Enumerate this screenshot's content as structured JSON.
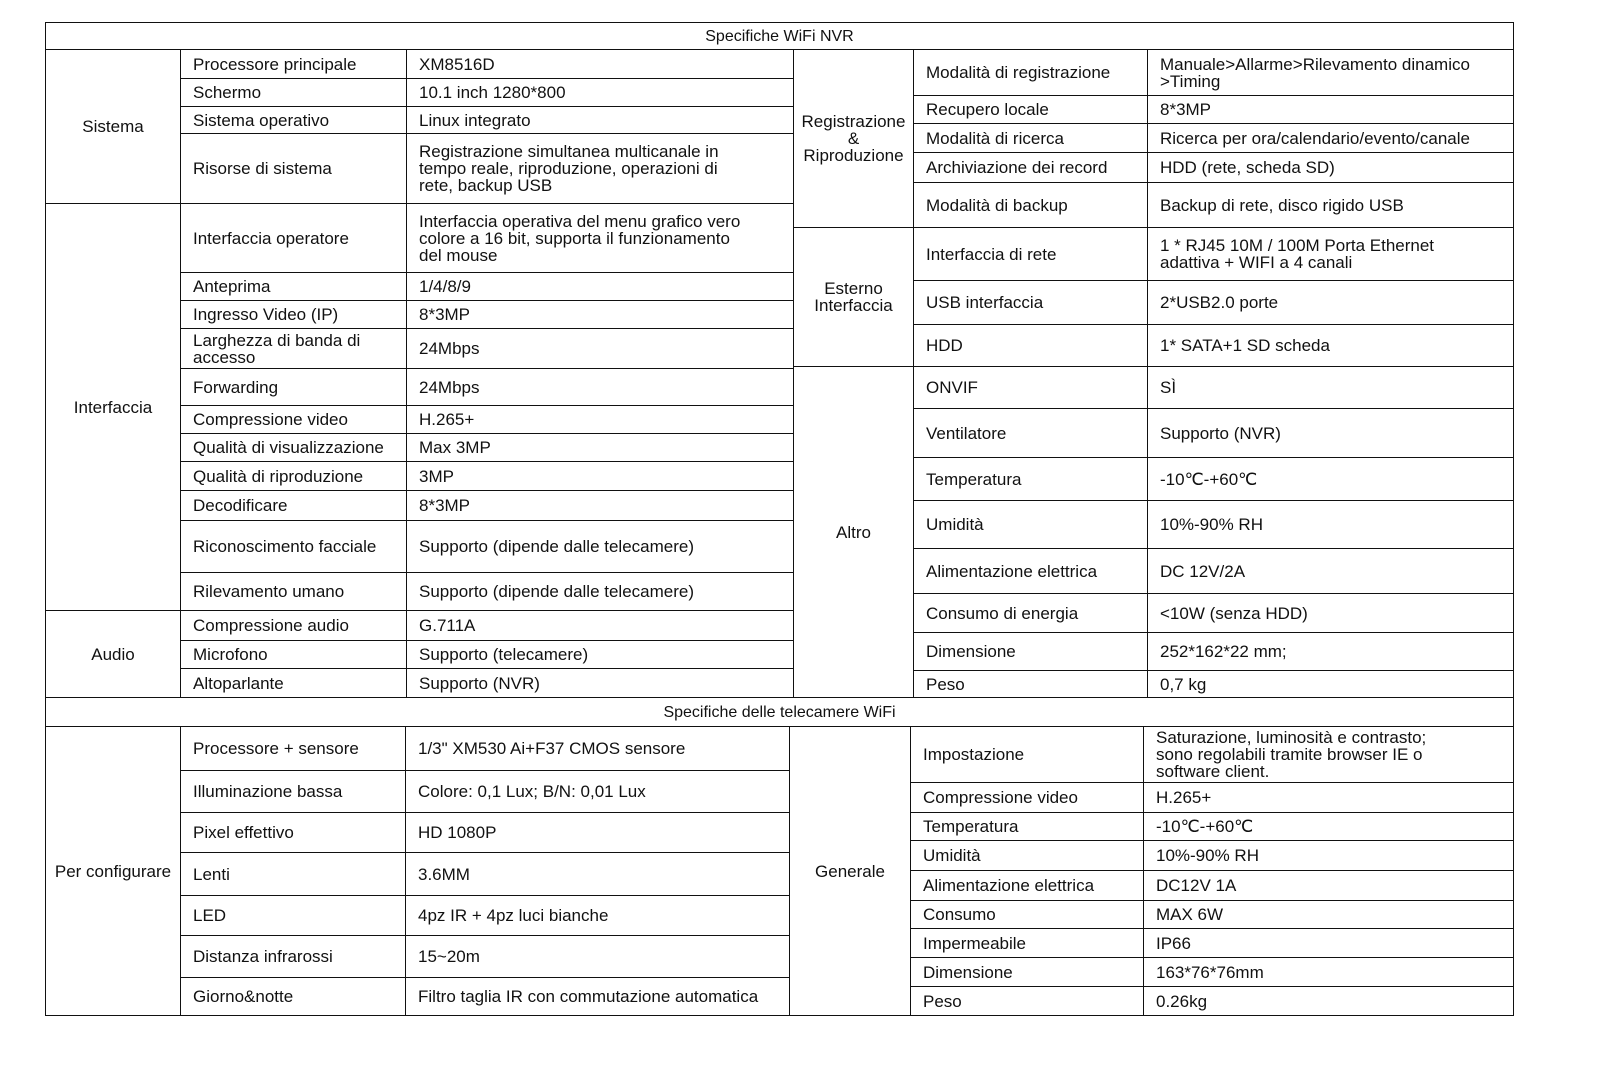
{
  "nvr": {
    "title": "Specifiche WiFi NVR",
    "left": [
      {
        "group": "Sistema",
        "rows": [
          {
            "label": "Processore principale",
            "value": "XM8516D"
          },
          {
            "label": "Schermo",
            "value": "10.1 inch  1280*800"
          },
          {
            "label": "Sistema operativo",
            "value": "Linux integrato"
          },
          {
            "label": "Risorse di sistema",
            "value": "Registrazione simultanea multicanale in\ntempo reale, riproduzione, operazioni di\nrete, backup USB"
          }
        ]
      },
      {
        "group": "Interfaccia",
        "rows": [
          {
            "label": "Interfaccia operatore",
            "value": "Interfaccia operativa del menu grafico vero\ncolore  a 16 bit, supporta il funzionamento\ndel mouse"
          },
          {
            "label": "Anteprima",
            "value": "1/4/8/9"
          },
          {
            "label": "Ingresso Video  (IP)",
            "value": "8*3MP"
          },
          {
            "label": "Larghezza di banda di\naccesso",
            "value": "24Mbps"
          },
          {
            "label": "Forwarding",
            "value": "24Mbps"
          },
          {
            "label": "Compressione video",
            "value": "H.265+"
          },
          {
            "label": "Qualità di visualizzazione",
            "value": "Max 3MP"
          },
          {
            "label": "Qualità di riproduzione",
            "value": "3MP"
          },
          {
            "label": "Decodificare",
            "value": "8*3MP"
          },
          {
            "label": "Riconoscimento facciale",
            "value": "Supporto (dipende dalle telecamere)"
          },
          {
            "label": "Rilevamento umano",
            "value": "Supporto (dipende dalle telecamere)"
          }
        ]
      },
      {
        "group": "Audio",
        "rows": [
          {
            "label": "Compressione audio",
            "value": "G.711A"
          },
          {
            "label": "Microfono",
            "value": "Supporto (telecamere)"
          },
          {
            "label": "Altoparlante",
            "value": "Supporto (NVR)"
          }
        ]
      }
    ],
    "right": [
      {
        "group": "Registrazione\n&\nRiproduzione",
        "rows": [
          {
            "label": "Modalità di registrazione",
            "value": "Manuale>Allarme>Rilevamento dinamico\n>Timing"
          },
          {
            "label": "Recupero locale",
            "value": "8*3MP"
          },
          {
            "label": "Modalità di ricerca",
            "value": "Ricerca per ora/calendario/evento/canale"
          },
          {
            "label": "Archiviazione dei record",
            "value": "HDD (rete, scheda SD)"
          },
          {
            "label": "Modalità di backup",
            "value": "Backup di rete, disco rigido USB"
          }
        ]
      },
      {
        "group": "Esterno\nInterfaccia",
        "rows": [
          {
            "label": "Interfaccia di rete",
            "value": "1 * RJ45 10M / 100M Porta Ethernet\nadattiva + WIFI a 4 canali"
          },
          {
            "label": "USB interfaccia",
            "value": "2*USB2.0 porte"
          },
          {
            "label": "HDD",
            "value": "1* SATA+1 SD scheda"
          }
        ]
      },
      {
        "group": "Altro",
        "rows": [
          {
            "label": "ONVIF",
            "value": "SÌ"
          },
          {
            "label": "Ventilatore",
            "value": "Supporto (NVR)"
          },
          {
            "label": "Temperatura",
            "value": "-10℃-+60℃"
          },
          {
            "label": "Umidità",
            "value": "10%-90% RH"
          },
          {
            "label": "Alimentazione elettrica",
            "value": "DC 12V/2A"
          },
          {
            "label": "Consumo di energia",
            "value": "<10W (senza HDD)"
          },
          {
            "label": "Dimensione",
            "value": "252*162*22 mm;"
          },
          {
            "label": "Peso",
            "value": "0,7 kg"
          }
        ]
      }
    ]
  },
  "camera": {
    "title": "Specifiche delle telecamere WiFi",
    "left": [
      {
        "group": "Per configurare",
        "rows": [
          {
            "label": "Processore + sensore",
            "value": "1/3\" XM530 Ai+F37 CMOS sensore"
          },
          {
            "label": "Illuminazione bassa",
            "value": "Colore: 0,1 Lux; B/N: 0,01 Lux"
          },
          {
            "label": "Pixel effettivo",
            "value": "HD 1080P"
          },
          {
            "label": "Lenti",
            "value": "3.6MM"
          },
          {
            "label": "LED",
            "value": "4pz IR + 4pz luci bianche"
          },
          {
            "label": "Distanza infrarossi",
            "value": "15~20m"
          },
          {
            "label": "Giorno&notte",
            "value": "Filtro taglia IR con commutazione automatica"
          }
        ]
      }
    ],
    "right": [
      {
        "group": "Generale",
        "rows": [
          {
            "label": "Impostazione",
            "value": "Saturazione, luminosità e contrasto;\nsono regolabili tramite browser IE o\nsoftware client."
          },
          {
            "label": "Compressione video",
            "value": "H.265+"
          },
          {
            "label": "Temperatura",
            "value": "-10℃-+60℃"
          },
          {
            "label": "Umidità",
            "value": "10%-90% RH"
          },
          {
            "label": "Alimentazione elettrica",
            "value": "DC12V 1A"
          },
          {
            "label": "Consumo",
            "value": "MAX 6W"
          },
          {
            "label": "Impermeabile",
            "value": "IP66"
          },
          {
            "label": "Dimensione",
            "value": "163*76*76mm"
          },
          {
            "label": "Peso",
            "value": "0.26kg"
          }
        ]
      }
    ]
  }
}
